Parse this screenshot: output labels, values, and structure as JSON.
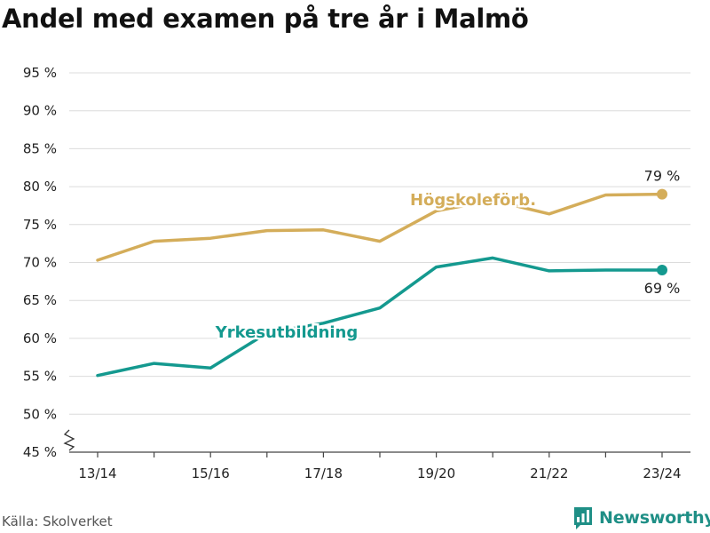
{
  "title": "Andel med examen på tre år i Malmö",
  "source": "Källa: Skolverket",
  "brand": "Newsworthy",
  "colors": {
    "hogskole": "#d4ad5a",
    "yrkes": "#14998f",
    "brand": "#1f8f86"
  },
  "chart_data": {
    "type": "line",
    "title": "Andel med examen på tre år i Malmö",
    "xlabel": "",
    "ylabel": "",
    "x": [
      "13/14",
      "14/15",
      "15/16",
      "16/17",
      "17/18",
      "18/19",
      "19/20",
      "20/21",
      "21/22",
      "22/23",
      "23/24"
    ],
    "x_tick_labels": [
      "13/14",
      "15/16",
      "17/18",
      "19/20",
      "21/22",
      "23/24"
    ],
    "y_ticks": [
      45,
      50,
      55,
      60,
      65,
      70,
      75,
      80,
      85,
      90,
      95
    ],
    "y_tick_labels": [
      "45 %",
      "50 %",
      "55 %",
      "60 %",
      "65 %",
      "70 %",
      "75 %",
      "80 %",
      "85 %",
      "90 %",
      "95 %"
    ],
    "ylim": [
      45,
      95
    ],
    "y_axis_break": true,
    "grid": true,
    "series": [
      {
        "name": "Högskoleförb.",
        "key": "hogskole",
        "values": [
          70.3,
          72.8,
          73.2,
          74.2,
          74.3,
          72.8,
          76.8,
          78.2,
          76.4,
          78.9,
          79.0
        ],
        "end_label": "79 %",
        "end_label_position": "above"
      },
      {
        "name": "Yrkesutbildning",
        "key": "yrkes",
        "values": [
          55.1,
          56.7,
          56.1,
          60.7,
          62.0,
          64.0,
          69.4,
          70.6,
          68.9,
          69.0,
          69.0
        ],
        "end_label": "69 %",
        "end_label_position": "below"
      }
    ]
  }
}
